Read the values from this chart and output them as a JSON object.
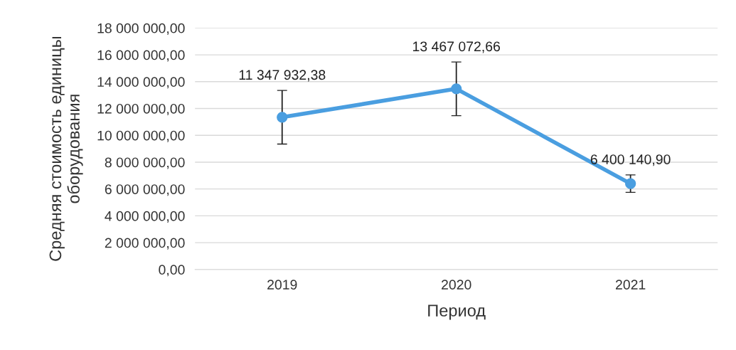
{
  "chart_data": {
    "type": "line",
    "xlabel": "Период",
    "ylabel": "Средняя стоимость единицы оборудования",
    "categories": [
      "2019",
      "2020",
      "2021"
    ],
    "values": [
      11347932.38,
      13467072.66,
      6400140.9
    ],
    "value_labels": [
      "11 347 932,38",
      "13 467 072,66",
      "6 400 140,90"
    ],
    "errors": [
      2000000,
      2000000,
      650000
    ],
    "color": "#4a9ee0",
    "marker": "circle",
    "line_style": "solid",
    "grid": "y",
    "legend": false,
    "ylim": [
      0,
      18000000
    ],
    "yticks": [
      {
        "value": 0,
        "label": "0,00"
      },
      {
        "value": 2000000,
        "label": "2 000 000,00"
      },
      {
        "value": 4000000,
        "label": "4 000 000,00"
      },
      {
        "value": 6000000,
        "label": "6 000 000,00"
      },
      {
        "value": 8000000,
        "label": "8 000 000,00"
      },
      {
        "value": 10000000,
        "label": "10 000 000,00"
      },
      {
        "value": 12000000,
        "label": "12 000 000,00"
      },
      {
        "value": 14000000,
        "label": "14 000 000,00"
      },
      {
        "value": 16000000,
        "label": "16 000 000,00"
      },
      {
        "value": 18000000,
        "label": "18 000 000,00"
      }
    ]
  }
}
